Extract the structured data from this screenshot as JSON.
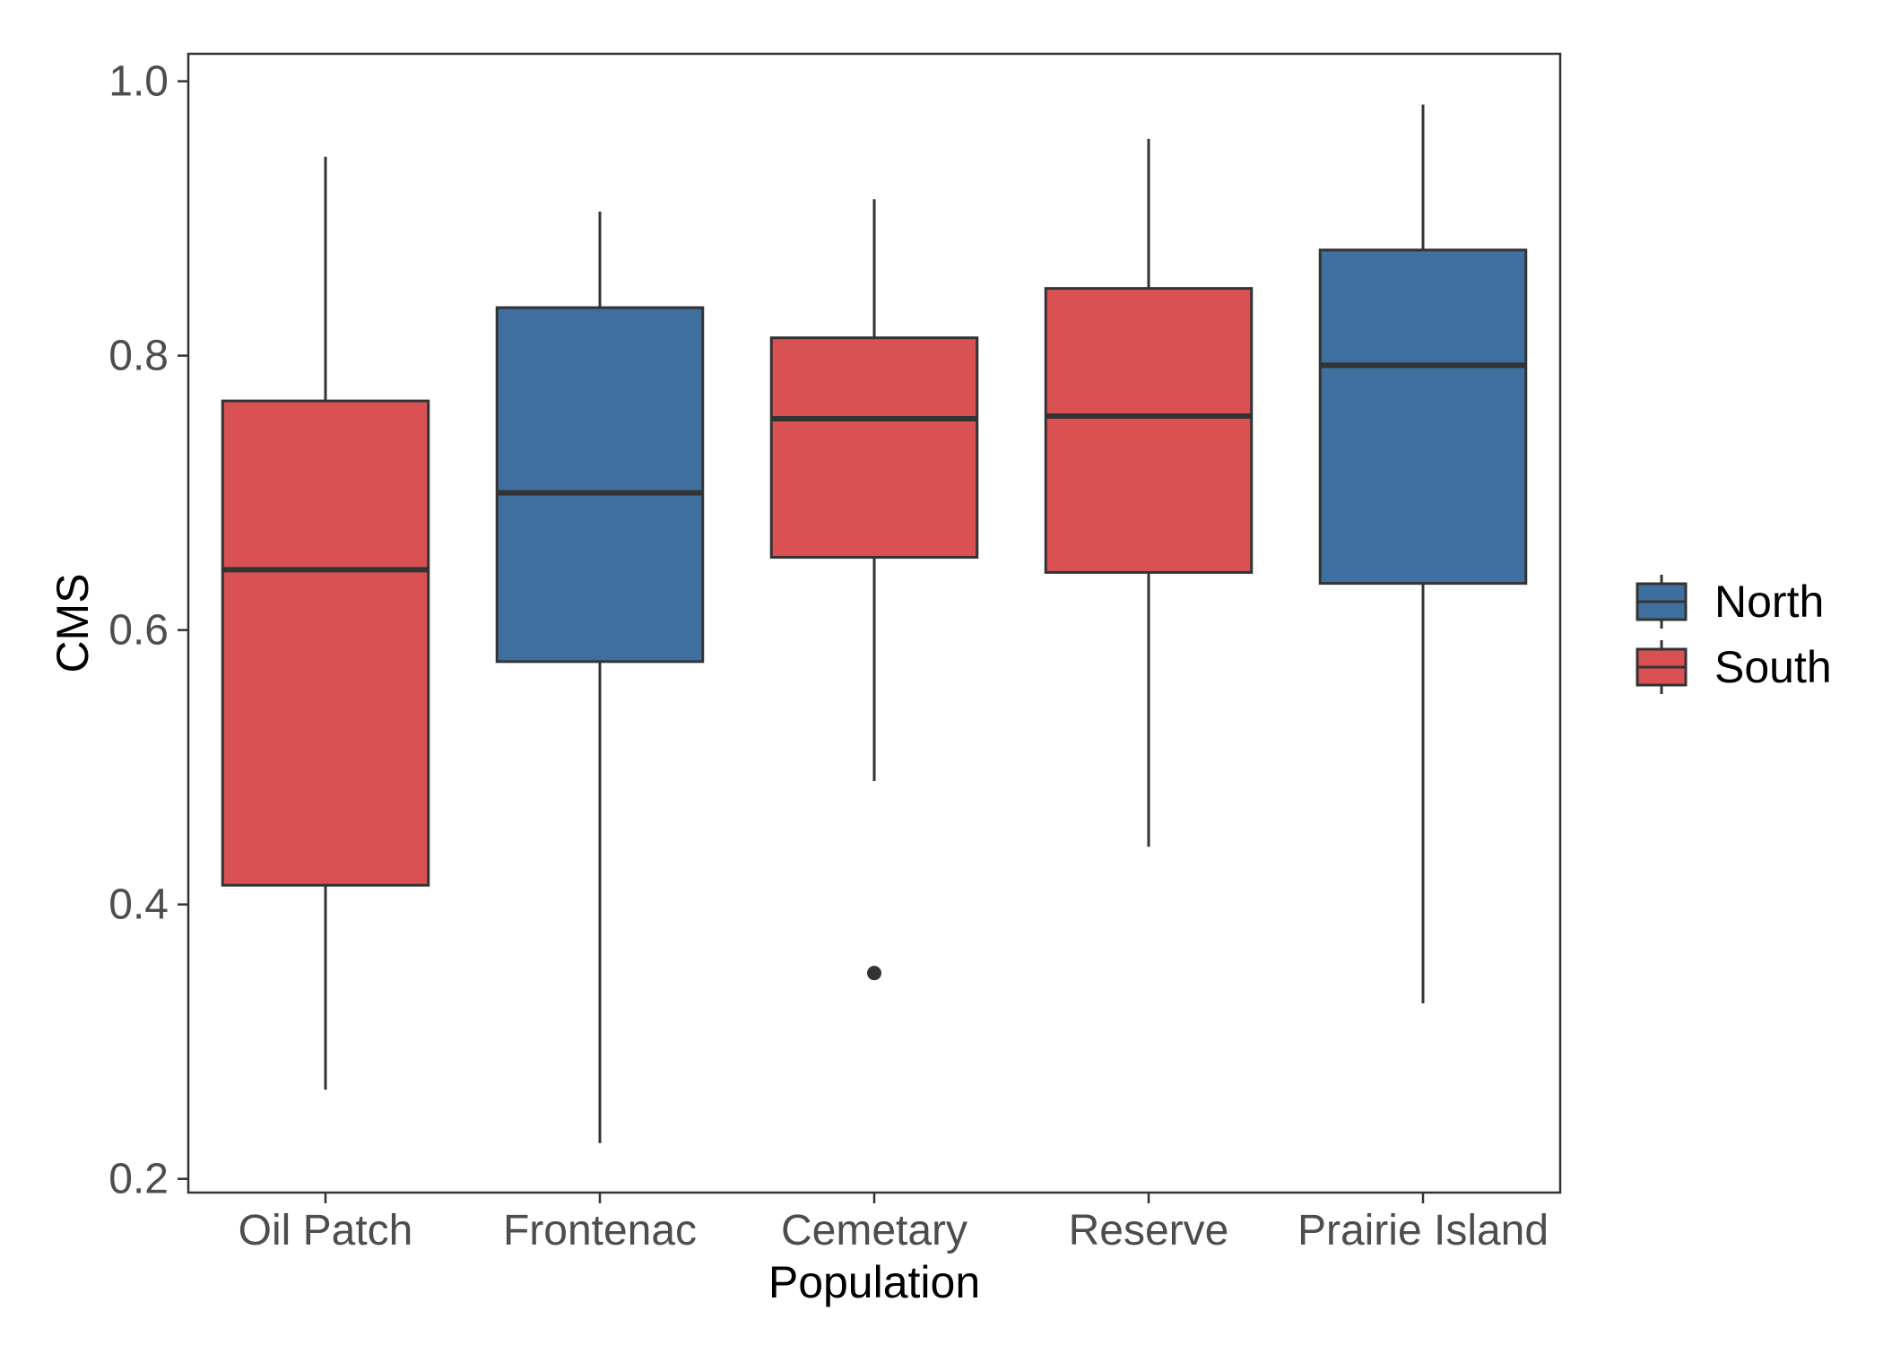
{
  "chart_data": {
    "type": "boxplot",
    "title": "",
    "xlabel": "Population",
    "ylabel": "CMS",
    "ylim": [
      0.19,
      1.02
    ],
    "y_ticks": [
      "0.2",
      "0.4",
      "0.6",
      "0.8",
      "1.0"
    ],
    "grid": false,
    "legend_position": "right",
    "categories": [
      "Oil Patch",
      "Frontenac",
      "Cemetary",
      "Reserve",
      "Prairie Island"
    ],
    "legend": [
      {
        "name": "North",
        "color": "#3f6f9f"
      },
      {
        "name": "South",
        "color": "#d95153"
      }
    ],
    "boxes": [
      {
        "category": "Oil Patch",
        "group": "South",
        "min": 0.265,
        "q1": 0.414,
        "median": 0.644,
        "q3": 0.767,
        "max": 0.945,
        "outliers": []
      },
      {
        "category": "Frontenac",
        "group": "North",
        "min": 0.226,
        "q1": 0.577,
        "median": 0.7,
        "q3": 0.835,
        "max": 0.905,
        "outliers": []
      },
      {
        "category": "Cemetary",
        "group": "South",
        "min": 0.49,
        "q1": 0.653,
        "median": 0.754,
        "q3": 0.813,
        "max": 0.914,
        "outliers": [
          0.35
        ]
      },
      {
        "category": "Reserve",
        "group": "South",
        "min": 0.442,
        "q1": 0.642,
        "median": 0.756,
        "q3": 0.849,
        "max": 0.958,
        "outliers": []
      },
      {
        "category": "Prairie Island",
        "group": "North",
        "min": 0.328,
        "q1": 0.634,
        "median": 0.793,
        "q3": 0.877,
        "max": 0.983,
        "outliers": []
      }
    ]
  }
}
